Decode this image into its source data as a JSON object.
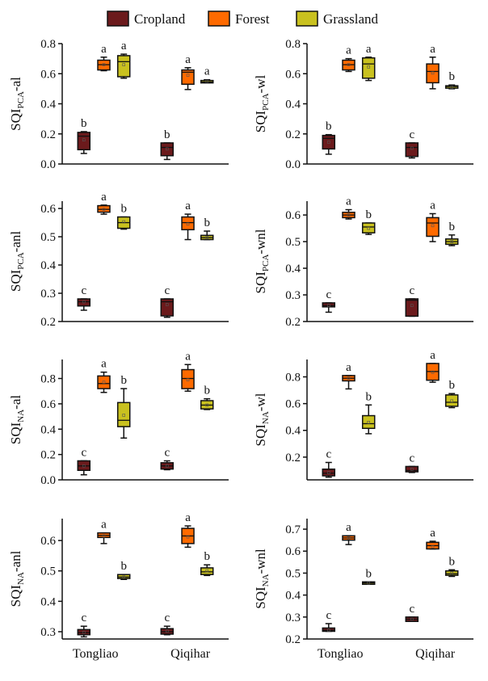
{
  "legend": [
    {
      "label": "Cropland",
      "color": "#6b1a1c"
    },
    {
      "label": "Forest",
      "color": "#ff6a00"
    },
    {
      "label": "Grassland",
      "color": "#c9c11f"
    }
  ],
  "chart_data": [
    {
      "type": "box",
      "ylabel": {
        "main": "SQI",
        "sub": "PCA",
        "suffix": "-al"
      },
      "ylim": [
        0,
        0.8
      ],
      "yticks": [
        "0.0",
        "0.2",
        "0.4",
        "0.6",
        "0.8"
      ],
      "categories": [
        "Tongliao",
        "Qiqihar"
      ],
      "groups": [
        {
          "category": "Tongliao",
          "series": "Cropland",
          "min": 0.07,
          "q1": 0.095,
          "median": 0.185,
          "q3": 0.21,
          "max": 0.215,
          "mean": 0.16,
          "letter": "b"
        },
        {
          "category": "Tongliao",
          "series": "Forest",
          "min": 0.62,
          "q1": 0.625,
          "median": 0.66,
          "q3": 0.69,
          "max": 0.71,
          "mean": 0.66,
          "letter": "a"
        },
        {
          "category": "Tongliao",
          "series": "Grassland",
          "min": 0.57,
          "q1": 0.58,
          "median": 0.68,
          "q3": 0.72,
          "max": 0.73,
          "mean": 0.66,
          "letter": "a"
        },
        {
          "category": "Qiqihar",
          "series": "Cropland",
          "min": 0.03,
          "q1": 0.055,
          "median": 0.11,
          "q3": 0.14,
          "max": 0.14,
          "mean": 0.1,
          "letter": "b"
        },
        {
          "category": "Qiqihar",
          "series": "Forest",
          "min": 0.495,
          "q1": 0.53,
          "median": 0.61,
          "q3": 0.625,
          "max": 0.64,
          "mean": 0.59,
          "letter": "a"
        },
        {
          "category": "Qiqihar",
          "series": "Grassland",
          "min": 0.54,
          "q1": 0.54,
          "median": 0.545,
          "q3": 0.555,
          "max": 0.56,
          "mean": 0.55,
          "letter": "a"
        }
      ]
    },
    {
      "type": "box",
      "ylabel": {
        "main": "SQI",
        "sub": "PCA",
        "suffix": "-wl"
      },
      "ylim": [
        0,
        0.8
      ],
      "yticks": [
        "0.0",
        "0.2",
        "0.4",
        "0.6",
        "0.8"
      ],
      "categories": [
        "Tongliao",
        "Qiqihar"
      ],
      "groups": [
        {
          "category": "Tongliao",
          "series": "Cropland",
          "min": 0.065,
          "q1": 0.1,
          "median": 0.17,
          "q3": 0.19,
          "max": 0.195,
          "mean": 0.145,
          "letter": "b"
        },
        {
          "category": "Tongliao",
          "series": "Forest",
          "min": 0.615,
          "q1": 0.625,
          "median": 0.66,
          "q3": 0.69,
          "max": 0.7,
          "mean": 0.66,
          "letter": "a"
        },
        {
          "category": "Tongliao",
          "series": "Grassland",
          "min": 0.555,
          "q1": 0.57,
          "median": 0.665,
          "q3": 0.705,
          "max": 0.71,
          "mean": 0.645,
          "letter": "a"
        },
        {
          "category": "Qiqihar",
          "series": "Cropland",
          "min": 0.04,
          "q1": 0.05,
          "median": 0.11,
          "q3": 0.14,
          "max": 0.14,
          "mean": 0.105,
          "letter": "c"
        },
        {
          "category": "Qiqihar",
          "series": "Forest",
          "min": 0.5,
          "q1": 0.54,
          "median": 0.615,
          "q3": 0.665,
          "max": 0.71,
          "mean": 0.605,
          "letter": "a"
        },
        {
          "category": "Qiqihar",
          "series": "Grassland",
          "min": 0.5,
          "q1": 0.505,
          "median": 0.515,
          "q3": 0.52,
          "max": 0.525,
          "mean": 0.51,
          "letter": "b"
        }
      ]
    },
    {
      "type": "box",
      "ylabel": {
        "main": "SQI",
        "sub": "PCA",
        "suffix": "-anl"
      },
      "ylim": [
        0.2,
        0.626
      ],
      "yticks": [
        "0.2",
        "0.3",
        "0.4",
        "0.5",
        "0.6"
      ],
      "categories": [
        "Tongliao",
        "Qiqihar"
      ],
      "groups": [
        {
          "category": "Tongliao",
          "series": "Cropland",
          "min": 0.24,
          "q1": 0.255,
          "median": 0.27,
          "q3": 0.28,
          "max": 0.28,
          "mean": 0.27,
          "letter": "c"
        },
        {
          "category": "Tongliao",
          "series": "Forest",
          "min": 0.58,
          "q1": 0.587,
          "median": 0.597,
          "q3": 0.61,
          "max": 0.612,
          "mean": 0.597,
          "letter": "a"
        },
        {
          "category": "Tongliao",
          "series": "Grassland",
          "min": 0.527,
          "q1": 0.53,
          "median": 0.55,
          "q3": 0.57,
          "max": 0.57,
          "mean": 0.553,
          "letter": "b"
        },
        {
          "category": "Qiqihar",
          "series": "Cropland",
          "min": 0.215,
          "q1": 0.22,
          "median": 0.27,
          "q3": 0.28,
          "max": 0.28,
          "mean": 0.26,
          "letter": "c"
        },
        {
          "category": "Qiqihar",
          "series": "Forest",
          "min": 0.49,
          "q1": 0.525,
          "median": 0.55,
          "q3": 0.57,
          "max": 0.58,
          "mean": 0.545,
          "letter": "a"
        },
        {
          "category": "Qiqihar",
          "series": "Grassland",
          "min": 0.49,
          "q1": 0.49,
          "median": 0.497,
          "q3": 0.505,
          "max": 0.52,
          "mean": 0.497,
          "letter": "b"
        }
      ]
    },
    {
      "type": "box",
      "ylabel": {
        "main": "SQI",
        "sub": "PCA",
        "suffix": "-wnl"
      },
      "ylim": [
        0.2,
        0.652
      ],
      "yticks": [
        "0.2",
        "0.3",
        "0.4",
        "0.5",
        "0.6"
      ],
      "categories": [
        "Tongliao",
        "Qiqihar"
      ],
      "groups": [
        {
          "category": "Tongliao",
          "series": "Cropland",
          "min": 0.235,
          "q1": 0.255,
          "median": 0.26,
          "q3": 0.27,
          "max": 0.27,
          "mean": 0.26,
          "letter": "c"
        },
        {
          "category": "Tongliao",
          "series": "Forest",
          "min": 0.585,
          "q1": 0.59,
          "median": 0.6,
          "q3": 0.61,
          "max": 0.62,
          "mean": 0.6,
          "letter": "a"
        },
        {
          "category": "Tongliao",
          "series": "Grassland",
          "min": 0.527,
          "q1": 0.533,
          "median": 0.555,
          "q3": 0.57,
          "max": 0.57,
          "mean": 0.55,
          "letter": "b"
        },
        {
          "category": "Qiqihar",
          "series": "Cropland",
          "min": 0.22,
          "q1": 0.22,
          "median": 0.28,
          "q3": 0.285,
          "max": 0.285,
          "mean": 0.26,
          "letter": "c"
        },
        {
          "category": "Qiqihar",
          "series": "Forest",
          "min": 0.5,
          "q1": 0.52,
          "median": 0.57,
          "q3": 0.59,
          "max": 0.605,
          "mean": 0.56,
          "letter": "a"
        },
        {
          "category": "Qiqihar",
          "series": "Grassland",
          "min": 0.485,
          "q1": 0.49,
          "median": 0.5,
          "q3": 0.51,
          "max": 0.525,
          "mean": 0.5,
          "letter": "b"
        }
      ]
    },
    {
      "type": "box",
      "ylabel": {
        "main": "SQI",
        "sub": "NA",
        "suffix": "-al"
      },
      "ylim": [
        0,
        0.95
      ],
      "yticks": [
        "0.0",
        "0.2",
        "0.4",
        "0.6",
        "0.8"
      ],
      "categories": [
        "Tongliao",
        "Qiqihar"
      ],
      "groups": [
        {
          "category": "Tongliao",
          "series": "Cropland",
          "min": 0.04,
          "q1": 0.075,
          "median": 0.11,
          "q3": 0.15,
          "max": 0.15,
          "mean": 0.11,
          "letter": "c"
        },
        {
          "category": "Tongliao",
          "series": "Forest",
          "min": 0.69,
          "q1": 0.72,
          "median": 0.76,
          "q3": 0.82,
          "max": 0.85,
          "mean": 0.77,
          "letter": "a"
        },
        {
          "category": "Tongliao",
          "series": "Grassland",
          "min": 0.33,
          "q1": 0.42,
          "median": 0.47,
          "q3": 0.61,
          "max": 0.72,
          "mean": 0.51,
          "letter": "b"
        },
        {
          "category": "Qiqihar",
          "series": "Cropland",
          "min": 0.08,
          "q1": 0.085,
          "median": 0.11,
          "q3": 0.135,
          "max": 0.15,
          "mean": 0.11,
          "letter": "c"
        },
        {
          "category": "Qiqihar",
          "series": "Forest",
          "min": 0.7,
          "q1": 0.72,
          "median": 0.8,
          "q3": 0.87,
          "max": 0.91,
          "mean": 0.79,
          "letter": "a"
        },
        {
          "category": "Qiqihar",
          "series": "Grassland",
          "min": 0.555,
          "q1": 0.56,
          "median": 0.59,
          "q3": 0.625,
          "max": 0.64,
          "mean": 0.59,
          "letter": "b"
        }
      ]
    },
    {
      "type": "box",
      "ylabel": {
        "main": "SQI",
        "sub": "NA",
        "suffix": "-wl"
      },
      "ylim": [
        0.03,
        0.93
      ],
      "yticks": [
        "0.2",
        "0.4",
        "0.6",
        "0.8"
      ],
      "categories": [
        "Tongliao",
        "Qiqihar"
      ],
      "groups": [
        {
          "category": "Tongliao",
          "series": "Cropland",
          "min": 0.05,
          "q1": 0.06,
          "median": 0.08,
          "q3": 0.11,
          "max": 0.16,
          "mean": 0.085,
          "letter": "c"
        },
        {
          "category": "Tongliao",
          "series": "Forest",
          "min": 0.71,
          "q1": 0.77,
          "median": 0.79,
          "q3": 0.81,
          "max": 0.81,
          "mean": 0.79,
          "letter": "a"
        },
        {
          "category": "Tongliao",
          "series": "Grassland",
          "min": 0.375,
          "q1": 0.415,
          "median": 0.45,
          "q3": 0.51,
          "max": 0.59,
          "mean": 0.46,
          "letter": "b"
        },
        {
          "category": "Qiqihar",
          "series": "Cropland",
          "min": 0.085,
          "q1": 0.09,
          "median": 0.1,
          "q3": 0.13,
          "max": 0.13,
          "mean": 0.11,
          "letter": "c"
        },
        {
          "category": "Qiqihar",
          "series": "Forest",
          "min": 0.76,
          "q1": 0.775,
          "median": 0.84,
          "q3": 0.9,
          "max": 0.9,
          "mean": 0.835,
          "letter": "a"
        },
        {
          "category": "Qiqihar",
          "series": "Grassland",
          "min": 0.57,
          "q1": 0.58,
          "median": 0.61,
          "q3": 0.665,
          "max": 0.675,
          "mean": 0.62,
          "letter": "b"
        }
      ]
    },
    {
      "type": "box",
      "ylabel": {
        "main": "SQI",
        "sub": "NA",
        "suffix": "-anl"
      },
      "ylim": [
        0.276,
        0.672
      ],
      "yticks": [
        "0.3",
        "0.4",
        "0.5",
        "0.6"
      ],
      "categories": [
        "Tongliao",
        "Qiqihar"
      ],
      "groups": [
        {
          "category": "Tongliao",
          "series": "Cropland",
          "min": 0.283,
          "q1": 0.29,
          "median": 0.297,
          "q3": 0.307,
          "max": 0.318,
          "mean": 0.298,
          "letter": "c"
        },
        {
          "category": "Tongliao",
          "series": "Forest",
          "min": 0.59,
          "q1": 0.61,
          "median": 0.617,
          "q3": 0.625,
          "max": 0.625,
          "mean": 0.615,
          "letter": "a"
        },
        {
          "category": "Tongliao",
          "series": "Grassland",
          "min": 0.472,
          "q1": 0.475,
          "median": 0.48,
          "q3": 0.488,
          "max": 0.488,
          "mean": 0.48,
          "letter": "b"
        },
        {
          "category": "Qiqihar",
          "series": "Cropland",
          "min": 0.29,
          "q1": 0.292,
          "median": 0.3,
          "q3": 0.31,
          "max": 0.318,
          "mean": 0.302,
          "letter": "c"
        },
        {
          "category": "Qiqihar",
          "series": "Forest",
          "min": 0.578,
          "q1": 0.59,
          "median": 0.615,
          "q3": 0.64,
          "max": 0.648,
          "mean": 0.612,
          "letter": "a"
        },
        {
          "category": "Qiqihar",
          "series": "Grassland",
          "min": 0.485,
          "q1": 0.488,
          "median": 0.497,
          "q3": 0.51,
          "max": 0.52,
          "mean": 0.5,
          "letter": "b"
        }
      ]
    },
    {
      "type": "box",
      "ylabel": {
        "main": "SQI",
        "sub": "NA",
        "suffix": "-wnl"
      },
      "ylim": [
        0.2,
        0.748
      ],
      "yticks": [
        "0.2",
        "0.3",
        "0.4",
        "0.5",
        "0.6",
        "0.7"
      ],
      "categories": [
        "Tongliao",
        "Qiqihar"
      ],
      "groups": [
        {
          "category": "Tongliao",
          "series": "Cropland",
          "min": 0.235,
          "q1": 0.235,
          "median": 0.24,
          "q3": 0.25,
          "max": 0.27,
          "mean": 0.24,
          "letter": "c"
        },
        {
          "category": "Tongliao",
          "series": "Forest",
          "min": 0.63,
          "q1": 0.65,
          "median": 0.66,
          "q3": 0.67,
          "max": 0.67,
          "mean": 0.66,
          "letter": "a"
        },
        {
          "category": "Tongliao",
          "series": "Grassland",
          "min": 0.45,
          "q1": 0.45,
          "median": 0.455,
          "q3": 0.46,
          "max": 0.46,
          "mean": 0.455,
          "letter": "b"
        },
        {
          "category": "Qiqihar",
          "series": "Cropland",
          "min": 0.28,
          "q1": 0.28,
          "median": 0.29,
          "q3": 0.3,
          "max": 0.3,
          "mean": 0.29,
          "letter": "c"
        },
        {
          "category": "Qiqihar",
          "series": "Forest",
          "min": 0.61,
          "q1": 0.61,
          "median": 0.625,
          "q3": 0.64,
          "max": 0.645,
          "mean": 0.62,
          "letter": "a"
        },
        {
          "category": "Qiqihar",
          "series": "Grassland",
          "min": 0.485,
          "q1": 0.49,
          "median": 0.497,
          "q3": 0.51,
          "max": 0.515,
          "mean": 0.5,
          "letter": "b"
        }
      ]
    }
  ]
}
